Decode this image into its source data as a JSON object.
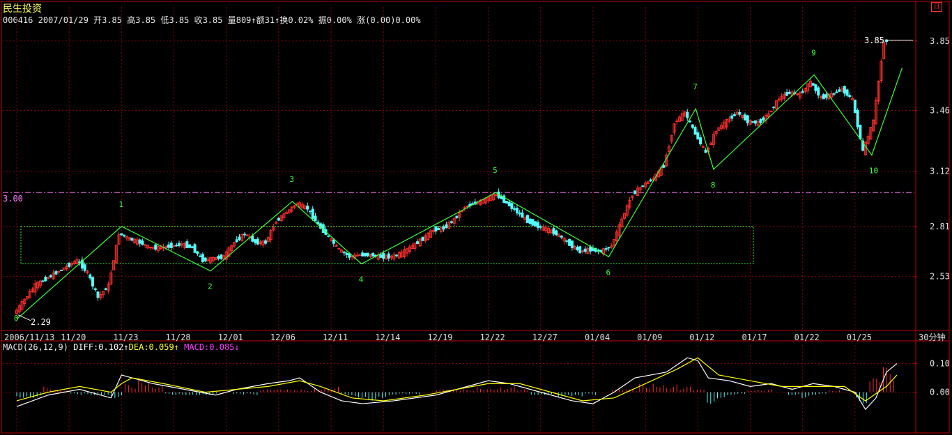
{
  "header": {
    "stock_name": "民生投资",
    "code": "000416",
    "date": "2007/01/29",
    "open_label": "开",
    "open": "3.85",
    "high_label": "高",
    "high": "3.85",
    "low_label": "低",
    "low": "3.85",
    "close_label": "收",
    "close": "3.85",
    "volume_label": "量",
    "volume": "809",
    "amount_label": "额",
    "amount": "31",
    "turnover_label": "换",
    "turnover": "0.02%",
    "amplitude_label": "振",
    "amplitude": "0.00%",
    "change_label": "涨",
    "change": "(0.00)0.00%"
  },
  "macd_header": {
    "name": "MACD(26,12,9)",
    "diff_label": "DIFF:",
    "diff": "0.102",
    "dea_label": "DEA:",
    "dea": "0.059",
    "macd_label": "MACD:",
    "macd": "0.085"
  },
  "period_label": "30分钟",
  "corner_icon": "日",
  "colors": {
    "up": "#ff3030",
    "down": "#54ffff",
    "wave": "#40ff40",
    "label_green": "#40ff40",
    "axis": "#c00000",
    "grid": "#800000",
    "ref_line": "#ff80ff",
    "diff": "#ffffff",
    "dea": "#ffff00",
    "macd_up": "#ff3030",
    "macd_down": "#54ffff"
  },
  "chart_data": [
    {
      "type": "candlestick",
      "y_ticks": [
        "3.85",
        "3.46",
        "3.12",
        "2.81",
        "2.53"
      ],
      "ylim": [
        2.25,
        3.9
      ],
      "x_ticks": [
        "2006/11/13",
        "11/20",
        "11/23",
        "11/28",
        "12/01",
        "12/06",
        "12/11",
        "12/14",
        "12/19",
        "12/22",
        "12/27",
        "01/04",
        "01/09",
        "01/12",
        "01/17",
        "01/22",
        "01/25"
      ],
      "reference_line": {
        "value": 3.0,
        "label": "3.00"
      },
      "price_markers": [
        {
          "label": "3.85",
          "value": 3.85
        },
        {
          "label": "2.29",
          "value": 2.29
        }
      ],
      "wave_points": [
        {
          "label": "0",
          "x": 0.0,
          "y": 2.29
        },
        {
          "label": "1",
          "x": 10.0,
          "y": 2.81
        },
        {
          "label": "2",
          "x": 18.5,
          "y": 2.56
        },
        {
          "label": "3",
          "x": 26.3,
          "y": 2.95
        },
        {
          "label": "4",
          "x": 32.9,
          "y": 2.6
        },
        {
          "label": "5",
          "x": 45.7,
          "y": 3.0
        },
        {
          "label": "6",
          "x": 56.5,
          "y": 2.64
        },
        {
          "label": "7",
          "x": 64.8,
          "y": 3.47
        },
        {
          "label": "8",
          "x": 66.5,
          "y": 3.13
        },
        {
          "label": "9",
          "x": 76.1,
          "y": 3.66
        },
        {
          "label": "10",
          "x": 81.6,
          "y": 3.21
        },
        {
          "label": "",
          "x": 84.5,
          "y": 3.7
        }
      ],
      "range_box": {
        "from_x": 0.0,
        "to_x": 69.9,
        "top": 2.81,
        "bottom": 2.6
      },
      "close_path": [
        [
          0,
          2.32
        ],
        [
          2,
          2.48
        ],
        [
          4,
          2.55
        ],
        [
          6,
          2.62
        ],
        [
          7,
          2.55
        ],
        [
          8,
          2.41
        ],
        [
          9,
          2.48
        ],
        [
          10,
          2.77
        ],
        [
          11,
          2.74
        ],
        [
          12,
          2.72
        ],
        [
          13,
          2.69
        ],
        [
          14,
          2.69
        ],
        [
          15,
          2.7
        ],
        [
          16,
          2.71
        ],
        [
          17,
          2.69
        ],
        [
          18,
          2.62
        ],
        [
          19,
          2.63
        ],
        [
          20,
          2.64
        ],
        [
          21,
          2.72
        ],
        [
          22,
          2.77
        ],
        [
          23,
          2.72
        ],
        [
          24,
          2.72
        ],
        [
          25,
          2.84
        ],
        [
          26,
          2.89
        ],
        [
          27,
          2.94
        ],
        [
          28,
          2.91
        ],
        [
          29,
          2.82
        ],
        [
          30,
          2.75
        ],
        [
          31,
          2.68
        ],
        [
          32,
          2.64
        ],
        [
          33,
          2.65
        ],
        [
          34,
          2.65
        ],
        [
          35,
          2.64
        ],
        [
          36,
          2.64
        ],
        [
          37,
          2.66
        ],
        [
          38,
          2.7
        ],
        [
          39,
          2.74
        ],
        [
          40,
          2.79
        ],
        [
          41,
          2.8
        ],
        [
          42,
          2.85
        ],
        [
          43,
          2.92
        ],
        [
          44,
          2.94
        ],
        [
          45,
          2.96
        ],
        [
          46,
          2.99
        ],
        [
          47,
          2.94
        ],
        [
          48,
          2.89
        ],
        [
          49,
          2.84
        ],
        [
          50,
          2.81
        ],
        [
          51,
          2.79
        ],
        [
          52,
          2.76
        ],
        [
          53,
          2.71
        ],
        [
          54,
          2.67
        ],
        [
          55,
          2.68
        ],
        [
          56,
          2.67
        ],
        [
          57,
          2.7
        ],
        [
          58,
          2.85
        ],
        [
          59,
          2.99
        ],
        [
          60,
          3.04
        ],
        [
          61,
          3.08
        ],
        [
          62,
          3.15
        ],
        [
          63,
          3.39
        ],
        [
          64,
          3.45
        ],
        [
          65,
          3.33
        ],
        [
          66,
          3.22
        ],
        [
          67,
          3.35
        ],
        [
          68,
          3.4
        ],
        [
          69,
          3.45
        ],
        [
          70,
          3.4
        ],
        [
          71,
          3.39
        ],
        [
          72,
          3.44
        ],
        [
          73,
          3.53
        ],
        [
          74,
          3.56
        ],
        [
          75,
          3.55
        ],
        [
          76,
          3.62
        ],
        [
          77,
          3.53
        ],
        [
          78,
          3.55
        ],
        [
          79,
          3.58
        ],
        [
          80,
          3.52
        ],
        [
          81,
          3.23
        ],
        [
          82,
          3.4
        ],
        [
          83,
          3.85
        ]
      ]
    },
    {
      "type": "macd",
      "y_ticks": [
        "0.10",
        "0.00"
      ],
      "ylim": [
        -0.12,
        0.14
      ],
      "diff_path": [
        [
          0,
          -0.05
        ],
        [
          3,
          -0.01
        ],
        [
          6,
          0.01
        ],
        [
          8,
          -0.01
        ],
        [
          9,
          -0.02
        ],
        [
          10,
          0.06
        ],
        [
          11,
          0.05
        ],
        [
          13,
          0.03
        ],
        [
          16,
          0.01
        ],
        [
          19,
          -0.01
        ],
        [
          21,
          0.01
        ],
        [
          24,
          0.03
        ],
        [
          26,
          0.04
        ],
        [
          27,
          0.05
        ],
        [
          29,
          0.0
        ],
        [
          31,
          -0.03
        ],
        [
          33,
          -0.04
        ],
        [
          36,
          -0.03
        ],
        [
          40,
          -0.01
        ],
        [
          43,
          0.02
        ],
        [
          45,
          0.04
        ],
        [
          47,
          0.03
        ],
        [
          50,
          0.0
        ],
        [
          53,
          -0.03
        ],
        [
          55,
          -0.04
        ],
        [
          57,
          0.0
        ],
        [
          59,
          0.05
        ],
        [
          62,
          0.07
        ],
        [
          64,
          0.12
        ],
        [
          65,
          0.11
        ],
        [
          66,
          0.05
        ],
        [
          68,
          0.04
        ],
        [
          70,
          0.02
        ],
        [
          72,
          0.03
        ],
        [
          74,
          0.01
        ],
        [
          76,
          0.03
        ],
        [
          78,
          0.02
        ],
        [
          80,
          0.0
        ],
        [
          81,
          -0.06
        ],
        [
          82,
          -0.02
        ],
        [
          83,
          0.07
        ],
        [
          84,
          0.1
        ]
      ],
      "dea_path": [
        [
          0,
          -0.03
        ],
        [
          3,
          0.0
        ],
        [
          6,
          0.02
        ],
        [
          9,
          0.0
        ],
        [
          10,
          0.03
        ],
        [
          11,
          0.05
        ],
        [
          14,
          0.03
        ],
        [
          18,
          0.0
        ],
        [
          21,
          0.01
        ],
        [
          24,
          0.02
        ],
        [
          27,
          0.04
        ],
        [
          29,
          0.02
        ],
        [
          32,
          -0.02
        ],
        [
          35,
          -0.03
        ],
        [
          39,
          -0.01
        ],
        [
          42,
          0.01
        ],
        [
          45,
          0.03
        ],
        [
          48,
          0.03
        ],
        [
          51,
          0.0
        ],
        [
          54,
          -0.03
        ],
        [
          57,
          -0.02
        ],
        [
          60,
          0.03
        ],
        [
          63,
          0.08
        ],
        [
          65,
          0.12
        ],
        [
          67,
          0.06
        ],
        [
          70,
          0.04
        ],
        [
          73,
          0.02
        ],
        [
          76,
          0.02
        ],
        [
          79,
          0.02
        ],
        [
          81,
          -0.03
        ],
        [
          83,
          0.02
        ],
        [
          84,
          0.06
        ]
      ],
      "hist": [
        -0.02,
        -0.02,
        0.02,
        0.01,
        -0.01,
        -0.01,
        -0.01,
        -0.02,
        0.03,
        0.06,
        0.03,
        -0.01,
        -0.01,
        -0.01,
        -0.01,
        0.0,
        -0.01,
        -0.01,
        0.01,
        0.01,
        0.01,
        0.01,
        0.02,
        0.02,
        -0.01,
        -0.02,
        -0.03,
        -0.02,
        -0.01,
        -0.01,
        0.0,
        0.01,
        0.01,
        0.01,
        0.02,
        0.02,
        0.02,
        0.01,
        -0.01,
        -0.01,
        -0.02,
        -0.02,
        -0.01,
        0.0,
        0.01,
        0.01,
        0.03,
        0.04,
        0.03,
        0.02,
        0.01,
        -0.04,
        -0.02,
        -0.01,
        0.01,
        0.01,
        0.0,
        -0.01,
        -0.02,
        -0.01,
        0.01,
        0.0,
        -0.04,
        0.05,
        0.09
      ]
    }
  ]
}
